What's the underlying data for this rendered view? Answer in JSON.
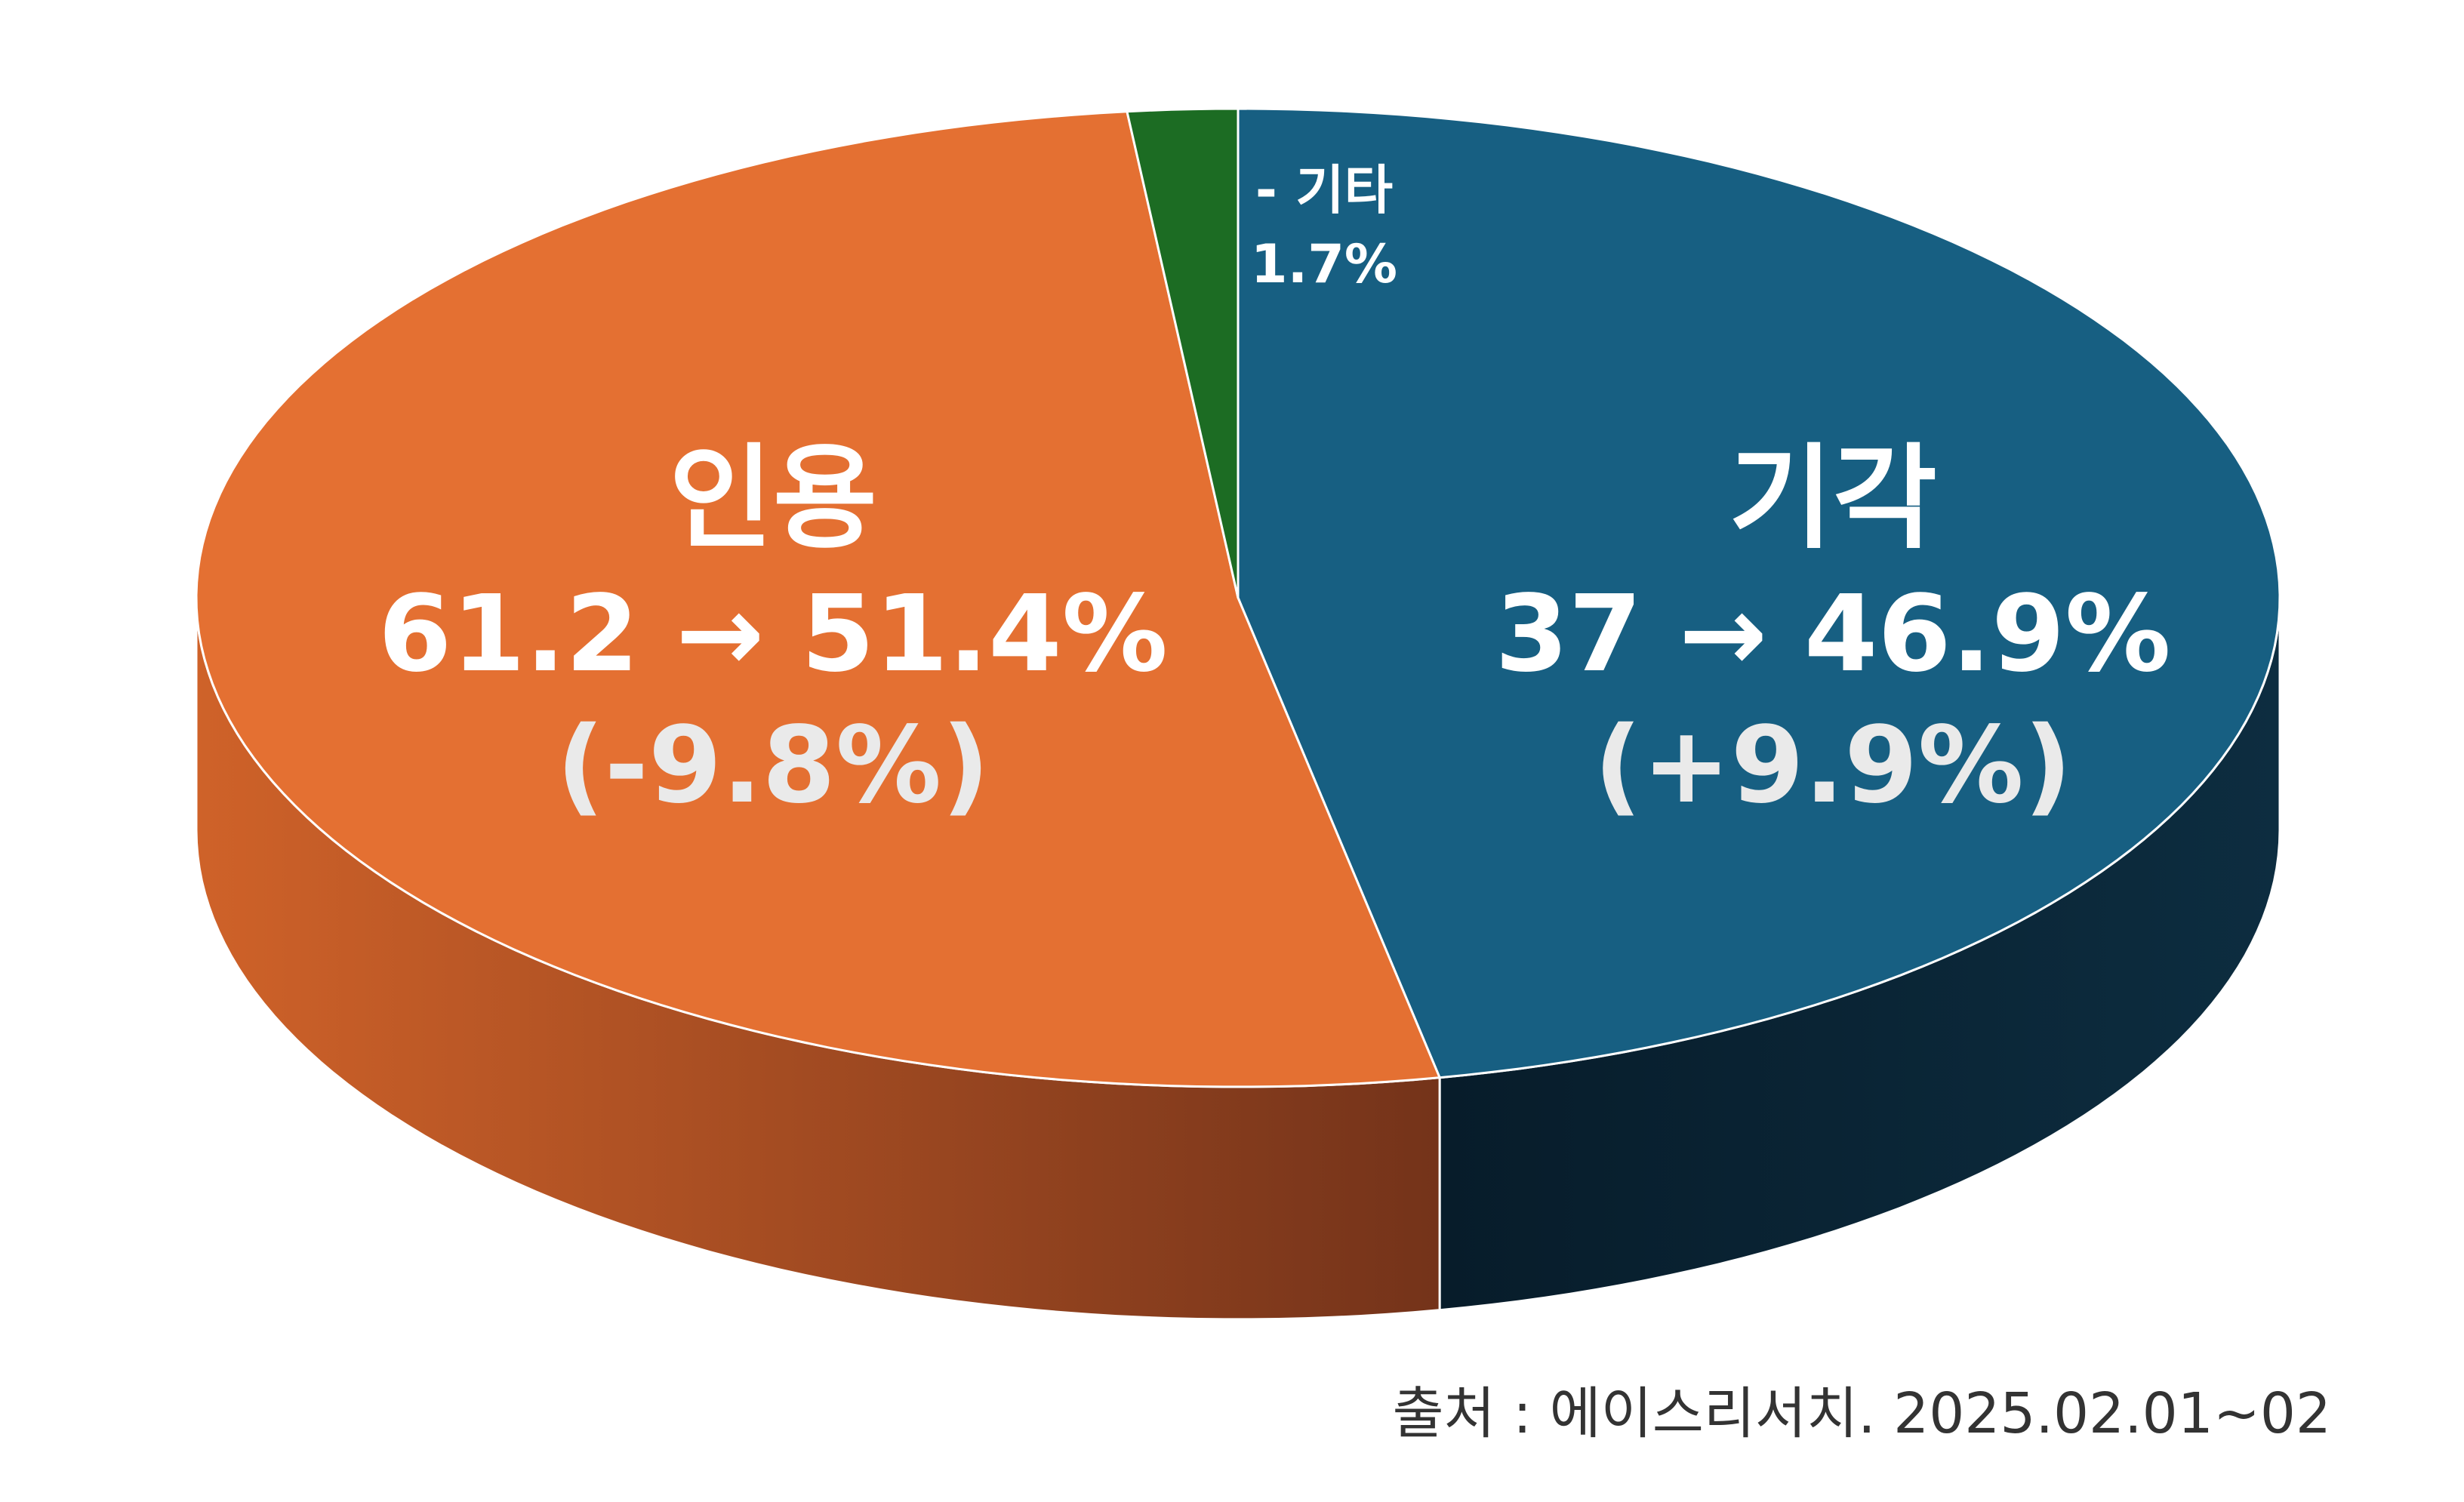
{
  "chart_data": {
    "type": "pie",
    "style": "3d",
    "slices": [
      {
        "label": "기각",
        "value": 46.9,
        "color": "#175f82",
        "side_color": "#0b2738",
        "text": "기각",
        "line2": "37 → 46.9%",
        "line3": "(+9.9%)"
      },
      {
        "label": "인용",
        "value": 51.4,
        "color": "#e47032",
        "side_color": "#b3521f",
        "text": "인용",
        "line2": "61.2 → 51.4%",
        "line3": "(-9.8%)"
      },
      {
        "label": "기타",
        "value": 1.7,
        "color": "#1c6c23",
        "side_color": "#114a16",
        "text": "- 기타",
        "line2": "1.7%",
        "line3": ""
      }
    ]
  },
  "source_note": "출처 : 에이스리서치. 2025.02.01~02"
}
